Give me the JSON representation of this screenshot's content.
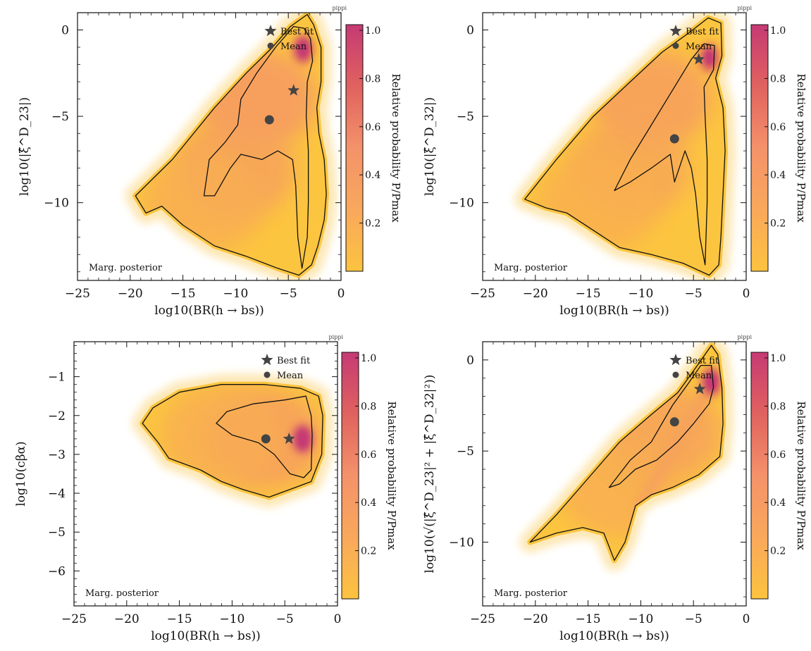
{
  "watermark": "pippi",
  "legend": {
    "best_fit": "Best fit",
    "mean": "Mean"
  },
  "corner_label": "Marg. posterior",
  "colormap": {
    "low": "#fcc33f",
    "mid": "#f4926a",
    "high": "#c53a74"
  },
  "chart_data": [
    {
      "type": "heatmap",
      "xlabel": "log10(BR(h → bs))",
      "ylabel": "log10(|ξ̂^D_23|)",
      "colorbar_label": "Relative probability P/Pmax",
      "xlim": [
        -25,
        0
      ],
      "ylim": [
        -14.5,
        1
      ],
      "x_ticks": [
        -25,
        -20,
        -15,
        -10,
        -5,
        0
      ],
      "x_tick_labels": [
        "−25",
        "−20",
        "−15",
        "−10",
        "−5",
        "0"
      ],
      "y_ticks": [
        0,
        -5,
        -10
      ],
      "y_tick_labels": [
        "0",
        "−5",
        "−10"
      ],
      "colorbar_ticks": [
        0.2,
        0.4,
        0.6,
        0.8,
        1.0
      ],
      "colorbar_tick_labels": [
        "0.2",
        "0.4",
        "0.6",
        "0.8",
        "1.0"
      ],
      "best_fit": [
        -4.5,
        -3.5
      ],
      "mean": [
        -6.8,
        -5.2
      ],
      "region_95": [
        [
          -19.5,
          -9.6
        ],
        [
          -16,
          -7.5
        ],
        [
          -12,
          -4.5
        ],
        [
          -9,
          -2.5
        ],
        [
          -6.5,
          -1
        ],
        [
          -4.8,
          0.2
        ],
        [
          -3.2,
          0.9
        ],
        [
          -2.6,
          0.3
        ],
        [
          -1.9,
          -1
        ],
        [
          -1.9,
          -3
        ],
        [
          -2.3,
          -4.5
        ],
        [
          -2.1,
          -6
        ],
        [
          -1.6,
          -7.5
        ],
        [
          -1.4,
          -9.5
        ],
        [
          -1.6,
          -11
        ],
        [
          -2.2,
          -12.5
        ],
        [
          -2.8,
          -13.6
        ],
        [
          -4,
          -14.2
        ],
        [
          -6,
          -13.8
        ],
        [
          -9,
          -13.1
        ],
        [
          -12,
          -12.5
        ],
        [
          -15,
          -11.3
        ],
        [
          -17,
          -10.2
        ],
        [
          -18.5,
          -10.6
        ]
      ],
      "region_68": [
        [
          -13,
          -9.6
        ],
        [
          -12.5,
          -7.5
        ],
        [
          -11,
          -6.5
        ],
        [
          -9.8,
          -5.5
        ],
        [
          -9.5,
          -4
        ],
        [
          -8,
          -2.5
        ],
        [
          -6.2,
          -1
        ],
        [
          -4.5,
          0.2
        ],
        [
          -3.5,
          0.1
        ],
        [
          -2.9,
          -0.5
        ],
        [
          -2.7,
          -1.8
        ],
        [
          -3.2,
          -3
        ],
        [
          -3.3,
          -5
        ],
        [
          -3.1,
          -7
        ],
        [
          -3.1,
          -10
        ],
        [
          -3.2,
          -12
        ],
        [
          -3.7,
          -13.8
        ],
        [
          -4.1,
          -12
        ],
        [
          -4.3,
          -9
        ],
        [
          -4.6,
          -7.5
        ],
        [
          -6,
          -7
        ],
        [
          -7.5,
          -7.5
        ],
        [
          -9.5,
          -7.2
        ],
        [
          -10.5,
          -8
        ],
        [
          -12,
          -9.6
        ]
      ],
      "density_peaks": [
        {
          "x": -3.6,
          "y": -1.1,
          "w": 0.95
        }
      ],
      "density_ridges": [
        {
          "x1": -3.6,
          "y1": -1.5,
          "x2": -3.6,
          "y2": -12,
          "w": 0.55
        }
      ],
      "density_bg": [
        {
          "x": -8,
          "y": -4,
          "w": 0.45
        },
        {
          "x": -10,
          "y": -8,
          "w": 0.35
        },
        {
          "x": -13,
          "y": -10,
          "w": 0.22
        }
      ]
    },
    {
      "type": "heatmap",
      "xlabel": "log10(BR(h → bs))",
      "ylabel": "log10(|ξ̂^D_32|)",
      "colorbar_label": "Relative probability P/Pmax",
      "xlim": [
        -25,
        0
      ],
      "ylim": [
        -14.5,
        1
      ],
      "x_ticks": [
        -25,
        -20,
        -15,
        -10,
        -5,
        0
      ],
      "x_tick_labels": [
        "−25",
        "−20",
        "−15",
        "−10",
        "−5",
        "0"
      ],
      "y_ticks": [
        0,
        -5,
        -10
      ],
      "y_tick_labels": [
        "0",
        "−5",
        "−10"
      ],
      "colorbar_ticks": [
        0.2,
        0.4,
        0.6,
        0.8,
        1.0
      ],
      "colorbar_tick_labels": [
        "0.2",
        "0.4",
        "0.6",
        "0.8",
        "1.0"
      ],
      "best_fit": [
        -4.5,
        -1.7
      ],
      "mean": [
        -6.8,
        -6.3
      ],
      "region_95": [
        [
          -21,
          -9.8
        ],
        [
          -18,
          -7.5
        ],
        [
          -14.5,
          -5
        ],
        [
          -11,
          -3
        ],
        [
          -8,
          -1.3
        ],
        [
          -5.5,
          -0.2
        ],
        [
          -3.6,
          0.7
        ],
        [
          -2.4,
          0.4
        ],
        [
          -2.3,
          -1.5
        ],
        [
          -2.9,
          -2.8
        ],
        [
          -2.2,
          -4.5
        ],
        [
          -2.0,
          -7
        ],
        [
          -2.2,
          -9.5
        ],
        [
          -2.4,
          -12
        ],
        [
          -2.6,
          -13.6
        ],
        [
          -3.5,
          -14.2
        ],
        [
          -6,
          -13.5
        ],
        [
          -9,
          -13
        ],
        [
          -12,
          -12.6
        ],
        [
          -14.5,
          -11.6
        ],
        [
          -17,
          -10.6
        ],
        [
          -19,
          -10.3
        ]
      ],
      "region_68": [
        [
          -12.5,
          -9.3
        ],
        [
          -11,
          -7.5
        ],
        [
          -9,
          -5.5
        ],
        [
          -7,
          -3.5
        ],
        [
          -5.2,
          -1.7
        ],
        [
          -4.0,
          -0.8
        ],
        [
          -3.0,
          -0.9
        ],
        [
          -3.1,
          -2.3
        ],
        [
          -4.0,
          -3.3
        ],
        [
          -3.9,
          -5
        ],
        [
          -3.7,
          -7.5
        ],
        [
          -3.7,
          -10
        ],
        [
          -3.9,
          -13.6
        ],
        [
          -4.4,
          -12
        ],
        [
          -4.8,
          -9.5
        ],
        [
          -5.2,
          -8
        ],
        [
          -5.8,
          -7
        ],
        [
          -6.8,
          -8.8
        ],
        [
          -7.2,
          -7.2
        ],
        [
          -9,
          -8
        ],
        [
          -11,
          -8.8
        ]
      ],
      "density_peaks": [
        {
          "x": -3.5,
          "y": -1.6,
          "w": 0.85
        }
      ],
      "density_ridges": [
        {
          "x1": -3.8,
          "y1": -3,
          "x2": -3.8,
          "y2": -12,
          "w": 0.55
        }
      ],
      "density_bg": [
        {
          "x": -9,
          "y": -4,
          "w": 0.4
        },
        {
          "x": -11,
          "y": -8,
          "w": 0.3
        },
        {
          "x": -14,
          "y": -10,
          "w": 0.2
        }
      ]
    },
    {
      "type": "heatmap",
      "xlabel": "log10(BR(h → bs))",
      "ylabel": "log10(cβα)",
      "colorbar_label": "Relative probability P/Pmax",
      "xlim": [
        -25,
        0
      ],
      "ylim": [
        -6.9,
        -0.1
      ],
      "x_ticks": [
        -25,
        -20,
        -15,
        -10,
        -5,
        0
      ],
      "x_tick_labels": [
        "−25",
        "−20",
        "−15",
        "−10",
        "−5",
        "0"
      ],
      "y_ticks": [
        -1,
        -2,
        -3,
        -4,
        -5,
        -6
      ],
      "y_tick_labels": [
        "−1",
        "−2",
        "−3",
        "−4",
        "−5",
        "−6"
      ],
      "colorbar_ticks": [
        0.2,
        0.4,
        0.6,
        0.8,
        1.0
      ],
      "colorbar_tick_labels": [
        "0.2",
        "0.4",
        "0.6",
        "0.8",
        "1.0"
      ],
      "best_fit": [
        -4.6,
        -2.6
      ],
      "mean": [
        -6.8,
        -2.6
      ],
      "region_95": [
        [
          -18.5,
          -2.2
        ],
        [
          -17.5,
          -1.8
        ],
        [
          -15,
          -1.4
        ],
        [
          -11,
          -1.2
        ],
        [
          -7,
          -1.2
        ],
        [
          -3.5,
          -1.3
        ],
        [
          -1.8,
          -1.5
        ],
        [
          -1.4,
          -2
        ],
        [
          -1.5,
          -3
        ],
        [
          -2.5,
          -3.7
        ],
        [
          -4.5,
          -3.9
        ],
        [
          -6.5,
          -4.1
        ],
        [
          -9,
          -3.9
        ],
        [
          -11,
          -3.7
        ],
        [
          -13,
          -3.4
        ],
        [
          -16,
          -3.1
        ],
        [
          -17,
          -2.7
        ]
      ],
      "region_68": [
        [
          -11.5,
          -2.2
        ],
        [
          -10.5,
          -1.9
        ],
        [
          -8,
          -1.7
        ],
        [
          -5,
          -1.6
        ],
        [
          -3,
          -1.5
        ],
        [
          -2.5,
          -2
        ],
        [
          -2.4,
          -2.5
        ],
        [
          -2.5,
          -3.4
        ],
        [
          -3.2,
          -3.6
        ],
        [
          -4.5,
          -3.5
        ],
        [
          -6,
          -3
        ],
        [
          -7.5,
          -2.7
        ],
        [
          -10,
          -2.5
        ]
      ],
      "density_peaks": [
        {
          "x": -3.3,
          "y": -2.6,
          "w": 1.0
        }
      ],
      "density_ridges": [
        {
          "x1": -3.3,
          "y1": -1.8,
          "x2": -3.3,
          "y2": -3.4,
          "w": 0.6
        }
      ],
      "density_bg": [
        {
          "x": -7,
          "y": -2.6,
          "w": 0.4
        },
        {
          "x": -11,
          "y": -2.5,
          "w": 0.22
        }
      ]
    },
    {
      "type": "heatmap",
      "xlabel": "log10(BR(h → bs))",
      "ylabel": "log10(√(|ξ̂^D_23|² + |ξ̂^D_32|²))",
      "colorbar_label": "Relative probability P/Pmax",
      "xlim": [
        -25,
        0
      ],
      "ylim": [
        -13.5,
        1
      ],
      "x_ticks": [
        -25,
        -20,
        -15,
        -10,
        -5,
        0
      ],
      "x_tick_labels": [
        "−25",
        "−20",
        "−15",
        "−10",
        "−5",
        "0"
      ],
      "y_ticks": [
        0,
        -5,
        -10
      ],
      "y_tick_labels": [
        "0",
        "−5",
        "−10"
      ],
      "colorbar_ticks": [
        0.2,
        0.4,
        0.6,
        0.8,
        1.0
      ],
      "colorbar_tick_labels": [
        "0.2",
        "0.4",
        "0.6",
        "0.8",
        "1.0"
      ],
      "best_fit": [
        -4.4,
        -1.6
      ],
      "mean": [
        -6.8,
        -3.4
      ],
      "region_95": [
        [
          -20.5,
          -10
        ],
        [
          -18,
          -8.5
        ],
        [
          -15,
          -6.5
        ],
        [
          -12,
          -4.5
        ],
        [
          -9,
          -3
        ],
        [
          -6.5,
          -1.8
        ],
        [
          -4.5,
          -0.2
        ],
        [
          -3.3,
          0.8
        ],
        [
          -2.7,
          0.3
        ],
        [
          -2.3,
          -1.5
        ],
        [
          -2.2,
          -3.5
        ],
        [
          -2.5,
          -5.3
        ],
        [
          -4.5,
          -6.3
        ],
        [
          -7,
          -7
        ],
        [
          -9,
          -7.4
        ],
        [
          -10.5,
          -8
        ],
        [
          -11.5,
          -10
        ],
        [
          -12.5,
          -11
        ],
        [
          -13.5,
          -9.5
        ],
        [
          -15.5,
          -9.2
        ],
        [
          -18,
          -9.5
        ]
      ],
      "region_68": [
        [
          -13,
          -7
        ],
        [
          -11,
          -5.5
        ],
        [
          -9,
          -4.5
        ],
        [
          -7,
          -2.5
        ],
        [
          -5.5,
          -1.3
        ],
        [
          -4.3,
          -0.3
        ],
        [
          -3.3,
          -0.3
        ],
        [
          -3.1,
          -1.5
        ],
        [
          -3.5,
          -2.4
        ],
        [
          -5,
          -3.5
        ],
        [
          -6.5,
          -4.5
        ],
        [
          -8.5,
          -5.5
        ],
        [
          -10.5,
          -6
        ],
        [
          -12,
          -6.8
        ]
      ],
      "density_peaks": [
        {
          "x": -3.3,
          "y": -1.2,
          "w": 0.95
        }
      ],
      "density_ridges": [
        {
          "x1": -4,
          "y1": -2,
          "x2": -10,
          "y2": -8,
          "w": 0.35
        }
      ],
      "density_bg": [
        {
          "x": -8,
          "y": -4,
          "w": 0.35
        },
        {
          "x": -12,
          "y": -7,
          "w": 0.22
        }
      ]
    }
  ]
}
